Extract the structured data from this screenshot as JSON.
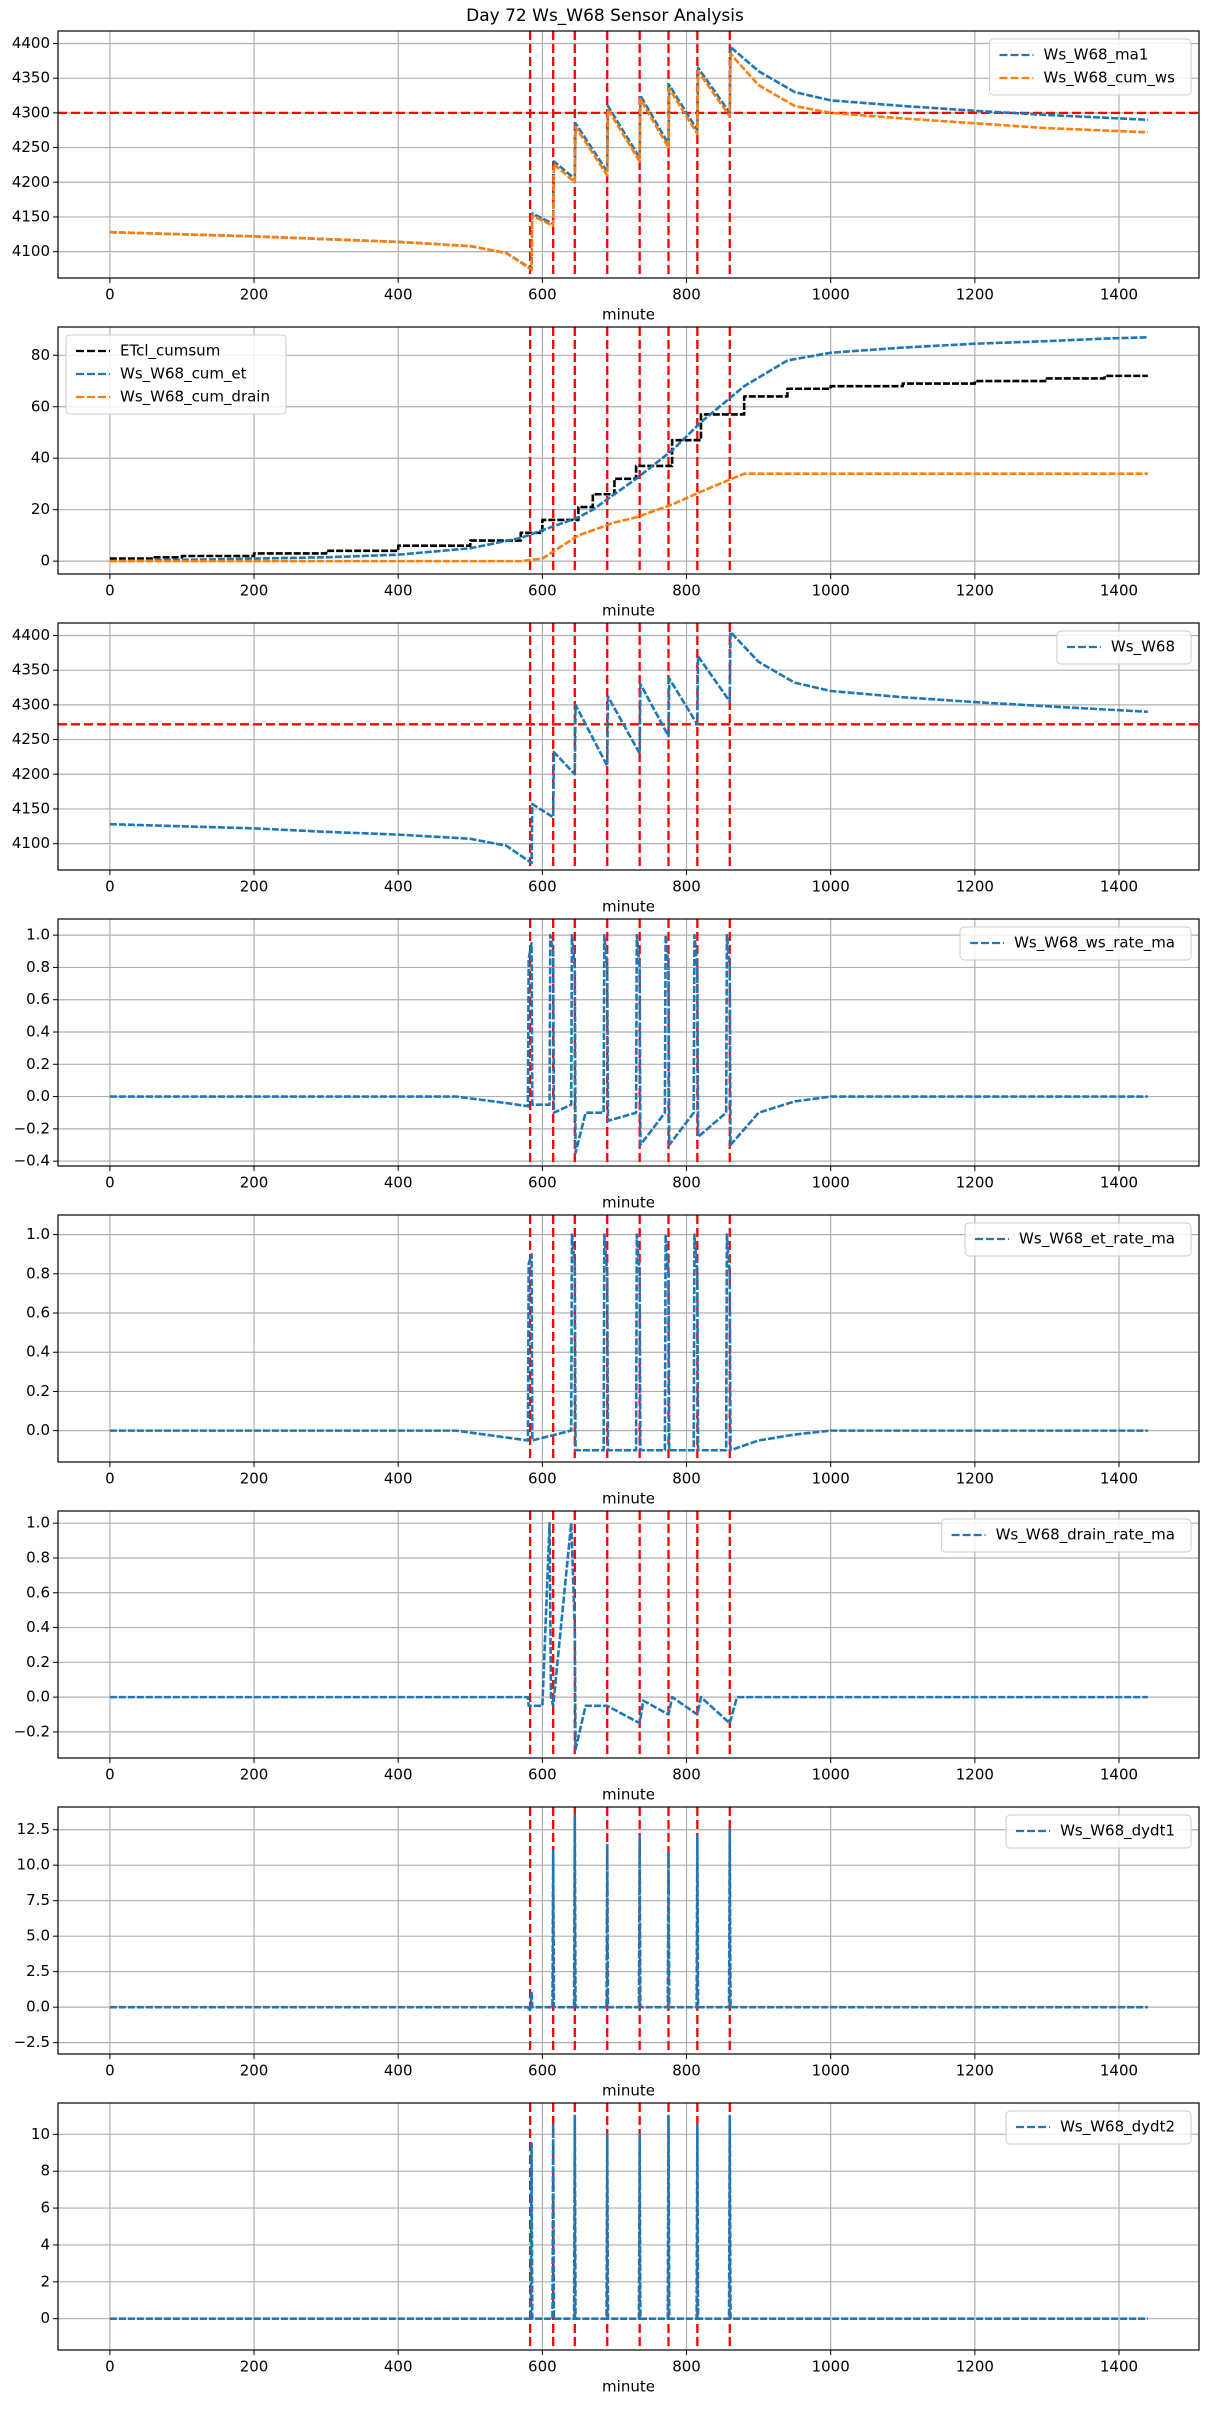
{
  "title": "Day 72 Ws_W68 Sensor Analysis",
  "chart_data": [
    {
      "type": "line",
      "xlabel": "minute",
      "grid": true,
      "legend": "upper right",
      "xlim": [
        -72,
        1511
      ],
      "xticks": [
        0,
        200,
        400,
        600,
        800,
        1000,
        1200,
        1400
      ],
      "ylim": [
        4062,
        4418
      ],
      "yticks": [
        4100,
        4150,
        4200,
        4250,
        4300,
        4350,
        4400
      ],
      "vlines": [
        583,
        615,
        645,
        690,
        735,
        775,
        815,
        860
      ],
      "vline_color": "#ff0000",
      "hline": 4300,
      "hline_color": "#ff0000",
      "x": [
        0,
        100,
        200,
        300,
        400,
        500,
        550,
        585,
        586,
        615,
        616,
        645,
        646,
        690,
        691,
        735,
        736,
        775,
        776,
        815,
        816,
        860,
        861,
        900,
        950,
        1000,
        1100,
        1200,
        1300,
        1440
      ],
      "series": [
        {
          "name": "Ws_W68_ma1",
          "color": "#1f77b4",
          "values": [
            4128,
            4125,
            4122,
            4118,
            4114,
            4108,
            4098,
            4075,
            4155,
            4140,
            4230,
            4205,
            4285,
            4215,
            4310,
            4235,
            4325,
            4255,
            4340,
            4275,
            4365,
            4300,
            4395,
            4360,
            4330,
            4318,
            4310,
            4303,
            4297,
            4290
          ]
        },
        {
          "name": "Ws_W68_cum_ws",
          "color": "#ff7f0e",
          "values": [
            4128,
            4125,
            4122,
            4118,
            4114,
            4108,
            4098,
            4074,
            4152,
            4137,
            4226,
            4200,
            4280,
            4210,
            4305,
            4230,
            4320,
            4250,
            4335,
            4270,
            4360,
            4295,
            4385,
            4340,
            4310,
            4300,
            4292,
            4285,
            4278,
            4272
          ]
        }
      ]
    },
    {
      "type": "line",
      "xlabel": "minute",
      "grid": true,
      "legend": "upper left",
      "xlim": [
        -72,
        1511
      ],
      "xticks": [
        0,
        200,
        400,
        600,
        800,
        1000,
        1200,
        1400
      ],
      "ylim": [
        -5,
        91
      ],
      "yticks": [
        0,
        20,
        40,
        60,
        80
      ],
      "vlines": [
        583,
        615,
        645,
        690,
        735,
        775,
        815,
        860
      ],
      "vline_color": "#ff0000",
      "x": [
        0,
        60,
        100,
        200,
        300,
        400,
        500,
        570,
        600,
        650,
        670,
        700,
        730,
        780,
        820,
        880,
        940,
        1000,
        1100,
        1200,
        1300,
        1380,
        1440
      ],
      "series": [
        {
          "name": "ETcl_cumsum",
          "color": "#000000",
          "drawstyle": "steps-post",
          "values": [
            1,
            1.5,
            2,
            3,
            4,
            6,
            8,
            11,
            16,
            21,
            26,
            32,
            37,
            47,
            57,
            64,
            67,
            68,
            69,
            70,
            71,
            72,
            72
          ]
        },
        {
          "name": "Ws_W68_cum_et",
          "color": "#1f77b4",
          "values": [
            0,
            0.3,
            0.5,
            1,
            1.5,
            2.5,
            5,
            9,
            12,
            17,
            20,
            26,
            32,
            43,
            54,
            68,
            78,
            81,
            83,
            84.5,
            85.5,
            86.5,
            87
          ]
        },
        {
          "name": "Ws_W68_cum_drain",
          "color": "#ff7f0e",
          "values": [
            0,
            0,
            0,
            0,
            0,
            0,
            0,
            0,
            1,
            10,
            12,
            15,
            17,
            22,
            27,
            34,
            34,
            34,
            34,
            34,
            34,
            34,
            34
          ]
        }
      ]
    },
    {
      "type": "line",
      "xlabel": "minute",
      "grid": true,
      "legend": "upper right",
      "xlim": [
        -72,
        1511
      ],
      "xticks": [
        0,
        200,
        400,
        600,
        800,
        1000,
        1200,
        1400
      ],
      "ylim": [
        4062,
        4418
      ],
      "yticks": [
        4100,
        4150,
        4200,
        4250,
        4300,
        4350,
        4400
      ],
      "vlines": [
        583,
        615,
        645,
        690,
        735,
        775,
        815,
        860
      ],
      "vline_color": "#ff0000",
      "hline": 4272,
      "hline_color": "#ff0000",
      "x": [
        0,
        100,
        200,
        300,
        400,
        500,
        550,
        585,
        586,
        615,
        616,
        645,
        646,
        690,
        691,
        735,
        736,
        775,
        776,
        815,
        816,
        860,
        861,
        900,
        950,
        1000,
        1100,
        1200,
        1300,
        1440
      ],
      "series": [
        {
          "name": "Ws_W68",
          "color": "#1f77b4",
          "values": [
            4128,
            4125,
            4122,
            4117,
            4113,
            4107,
            4097,
            4072,
            4157,
            4138,
            4232,
            4200,
            4300,
            4212,
            4312,
            4230,
            4330,
            4255,
            4338,
            4272,
            4370,
            4305,
            4405,
            4362,
            4332,
            4320,
            4311,
            4304,
            4298,
            4290
          ]
        }
      ]
    },
    {
      "type": "line",
      "xlabel": "minute",
      "grid": true,
      "legend": "upper right",
      "xlim": [
        -72,
        1511
      ],
      "xticks": [
        0,
        200,
        400,
        600,
        800,
        1000,
        1200,
        1400
      ],
      "ylim": [
        -0.43,
        1.1
      ],
      "yticks": [
        {
          "value": -0.4,
          "label": "−0.4"
        },
        {
          "value": -0.2,
          "label": "−0.2"
        },
        {
          "value": 0,
          "label": "0.0"
        },
        0.2,
        0.4,
        0.6,
        0.8,
        {
          "value": 1,
          "label": "1.0"
        }
      ],
      "vlines": [
        583,
        615,
        645,
        690,
        735,
        775,
        815,
        860
      ],
      "vline_color": "#ff0000",
      "x": [
        0,
        100,
        200,
        300,
        400,
        480,
        550,
        580,
        581,
        585,
        586,
        610,
        611,
        615,
        616,
        640,
        641,
        645,
        646,
        660,
        685,
        686,
        690,
        691,
        730,
        731,
        735,
        736,
        770,
        771,
        775,
        776,
        810,
        811,
        815,
        816,
        855,
        856,
        860,
        861,
        900,
        950,
        1000,
        1200,
        1440
      ],
      "series": [
        {
          "name": "Ws_W68_ws_rate_ma",
          "color": "#1f77b4",
          "values": [
            0,
            0,
            0,
            0,
            0,
            0,
            -0.04,
            -0.06,
            0.85,
            0.95,
            -0.05,
            -0.05,
            1.0,
            0.9,
            -0.1,
            -0.05,
            1.0,
            0.8,
            -0.35,
            -0.1,
            -0.1,
            1.0,
            0.8,
            -0.15,
            -0.1,
            1.0,
            0.8,
            -0.3,
            -0.1,
            1.0,
            0.8,
            -0.3,
            -0.1,
            1.0,
            0.8,
            -0.25,
            -0.1,
            1.0,
            0.8,
            -0.3,
            -0.1,
            -0.03,
            0,
            0,
            0
          ]
        }
      ]
    },
    {
      "type": "line",
      "xlabel": "minute",
      "grid": true,
      "legend": "upper right",
      "xlim": [
        -72,
        1511
      ],
      "xticks": [
        0,
        200,
        400,
        600,
        800,
        1000,
        1200,
        1400
      ],
      "ylim": [
        -0.16,
        1.1
      ],
      "yticks": [
        {
          "value": 0,
          "label": "0.0"
        },
        0.2,
        0.4,
        0.6,
        0.8,
        {
          "value": 1,
          "label": "1.0"
        }
      ],
      "vlines": [
        583,
        615,
        645,
        690,
        735,
        775,
        815,
        860
      ],
      "vline_color": "#ff0000",
      "x": [
        0,
        200,
        400,
        480,
        580,
        581,
        585,
        586,
        640,
        641,
        645,
        646,
        685,
        686,
        690,
        691,
        730,
        731,
        735,
        736,
        770,
        771,
        775,
        776,
        810,
        811,
        815,
        816,
        855,
        856,
        860,
        861,
        900,
        950,
        1000,
        1200,
        1440
      ],
      "series": [
        {
          "name": "Ws_W68_et_rate_ma",
          "color": "#1f77b4",
          "values": [
            0,
            0,
            0,
            0,
            -0.05,
            0.85,
            0.9,
            -0.05,
            0,
            1.0,
            0.85,
            -0.1,
            -0.1,
            1.0,
            0.8,
            -0.1,
            -0.1,
            1.0,
            0.8,
            -0.1,
            -0.1,
            1.0,
            0.8,
            -0.1,
            -0.1,
            1.0,
            0.8,
            -0.1,
            -0.1,
            1.0,
            0.8,
            -0.1,
            -0.05,
            -0.02,
            0,
            0,
            0
          ]
        }
      ]
    },
    {
      "type": "line",
      "xlabel": "minute",
      "grid": true,
      "legend": "upper right",
      "xlim": [
        -72,
        1511
      ],
      "xticks": [
        0,
        200,
        400,
        600,
        800,
        1000,
        1200,
        1400
      ],
      "ylim": [
        -0.35,
        1.07
      ],
      "yticks": [
        {
          "value": -0.2,
          "label": "−0.2"
        },
        {
          "value": 0,
          "label": "0.0"
        },
        0.2,
        0.4,
        0.6,
        0.8,
        {
          "value": 1,
          "label": "1.0"
        }
      ],
      "vlines": [
        583,
        615,
        645,
        690,
        735,
        775,
        815,
        860
      ],
      "vline_color": "#ff0000",
      "x": [
        0,
        580,
        581,
        600,
        610,
        612,
        615,
        640,
        645,
        646,
        660,
        690,
        735,
        740,
        775,
        780,
        815,
        820,
        860,
        870,
        890,
        1440
      ],
      "series": [
        {
          "name": "Ws_W68_drain_rate_ma",
          "color": "#1f77b4",
          "values": [
            0,
            0,
            -0.05,
            -0.05,
            1.0,
            0,
            -0.05,
            1.0,
            0.4,
            -0.3,
            -0.05,
            -0.05,
            -0.15,
            -0.02,
            -0.1,
            0,
            -0.1,
            0,
            -0.15,
            0,
            0,
            0
          ]
        }
      ]
    },
    {
      "type": "line",
      "xlabel": "minute",
      "grid": true,
      "legend": "upper right",
      "xlim": [
        -72,
        1511
      ],
      "xticks": [
        0,
        200,
        400,
        600,
        800,
        1000,
        1200,
        1400
      ],
      "ylim": [
        -3.3,
        14.1
      ],
      "yticks": [
        {
          "value": -2.5,
          "label": "−2.5"
        },
        {
          "value": 0,
          "label": "0.0"
        },
        2.5,
        {
          "value": 5,
          "label": "5.0"
        },
        7.5,
        {
          "value": 10,
          "label": "10.0"
        },
        12.5
      ],
      "vlines": [
        583,
        615,
        645,
        690,
        735,
        775,
        815,
        860
      ],
      "vline_color": "#ff0000",
      "x": [
        0,
        580,
        583,
        585,
        586,
        614,
        615,
        616,
        644,
        645,
        646,
        689,
        690,
        691,
        734,
        735,
        736,
        774,
        775,
        776,
        814,
        815,
        816,
        859,
        860,
        861,
        1440
      ],
      "series": [
        {
          "name": "Ws_W68_dydt1",
          "color": "#1f77b4",
          "values": [
            0,
            0,
            -0.3,
            1,
            0,
            0,
            11,
            0,
            0,
            13.5,
            0,
            0,
            11.5,
            0,
            0,
            12,
            0,
            0,
            11,
            0,
            0,
            12,
            0,
            0,
            12.5,
            0,
            0
          ]
        }
      ]
    },
    {
      "type": "line",
      "xlabel": "minute",
      "grid": true,
      "legend": "upper right",
      "xlim": [
        -72,
        1511
      ],
      "xticks": [
        0,
        200,
        400,
        600,
        800,
        1000,
        1200,
        1400
      ],
      "ylim": [
        -1.7,
        11.7
      ],
      "yticks": [
        0,
        2,
        4,
        6,
        8,
        10
      ],
      "vlines": [
        583,
        615,
        645,
        690,
        735,
        775,
        815,
        860
      ],
      "vline_color": "#ff0000",
      "x": [
        0,
        584,
        585,
        586,
        614,
        615,
        616,
        644,
        645,
        646,
        689,
        690,
        691,
        734,
        735,
        736,
        774,
        775,
        776,
        814,
        815,
        816,
        859,
        860,
        861,
        1440
      ],
      "series": [
        {
          "name": "Ws_W68_dydt2",
          "color": "#1f77b4",
          "values": [
            0,
            0,
            9.5,
            0,
            0,
            10.5,
            0,
            0,
            11,
            0,
            0,
            10,
            0,
            0,
            10,
            0,
            0,
            11,
            0,
            0,
            10.5,
            0,
            0,
            11,
            0,
            0
          ]
        }
      ]
    }
  ]
}
